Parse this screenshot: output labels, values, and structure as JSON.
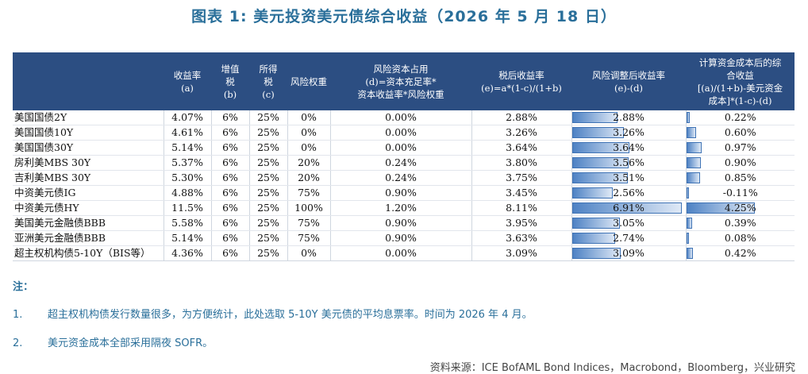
{
  "title": "图表  1:  美元投资美元债综合收益（2026 年 5 月 18 日）",
  "chart_data": {
    "type": "table",
    "columns": [
      "",
      "收益率\n(a)",
      "增值\n税\n(b)",
      "所得\n税\n(c)",
      "风险权重",
      "风险资本占用\n(d)=资本充足率*\n资本收益率*风险权重",
      "税后收益率\n(e)=a*(1-c)/(1+b)",
      "风险调整后收益率\n(e)-(d)",
      "计算资金成本后的综\n合收益\n[(a)/(1+b)-美元资金\n成本]*(1-c)-(d)"
    ],
    "rows": [
      {
        "name": "美国国债2Y",
        "yield": "4.07%",
        "vat": "6%",
        "tax": "25%",
        "weight": "0%",
        "capital": "0.00%",
        "after_tax": "2.88%",
        "risk_adj": "2.88%",
        "risk_adj_value": 2.88,
        "combined": "0.22%",
        "combined_value": 0.22
      },
      {
        "name": "美国国债10Y",
        "yield": "4.61%",
        "vat": "6%",
        "tax": "25%",
        "weight": "0%",
        "capital": "0.00%",
        "after_tax": "3.26%",
        "risk_adj": "3.26%",
        "risk_adj_value": 3.26,
        "combined": "0.60%",
        "combined_value": 0.6
      },
      {
        "name": "美国国债30Y",
        "yield": "5.14%",
        "vat": "6%",
        "tax": "25%",
        "weight": "0%",
        "capital": "0.00%",
        "after_tax": "3.64%",
        "risk_adj": "3.64%",
        "risk_adj_value": 3.64,
        "combined": "0.97%",
        "combined_value": 0.97
      },
      {
        "name": "房利美MBS 30Y",
        "yield": "5.37%",
        "vat": "6%",
        "tax": "25%",
        "weight": "20%",
        "capital": "0.24%",
        "after_tax": "3.80%",
        "risk_adj": "3.56%",
        "risk_adj_value": 3.56,
        "combined": "0.90%",
        "combined_value": 0.9
      },
      {
        "name": "吉利美MBS 30Y",
        "yield": "5.30%",
        "vat": "6%",
        "tax": "25%",
        "weight": "20%",
        "capital": "0.24%",
        "after_tax": "3.75%",
        "risk_adj": "3.51%",
        "risk_adj_value": 3.51,
        "combined": "0.85%",
        "combined_value": 0.85
      },
      {
        "name": "中资美元债IG",
        "yield": "4.88%",
        "vat": "6%",
        "tax": "25%",
        "weight": "75%",
        "capital": "0.90%",
        "after_tax": "3.45%",
        "risk_adj": "2.56%",
        "risk_adj_value": 2.56,
        "combined": "-0.11%",
        "combined_value": -0.11
      },
      {
        "name": "中资美元债HY",
        "yield": "11.5%",
        "vat": "6%",
        "tax": "25%",
        "weight": "100%",
        "capital": "1.20%",
        "after_tax": "8.11%",
        "risk_adj": "6.91%",
        "risk_adj_value": 6.91,
        "combined": "4.25%",
        "combined_value": 4.25
      },
      {
        "name": "美国美元金融债BBB",
        "yield": "5.58%",
        "vat": "6%",
        "tax": "25%",
        "weight": "75%",
        "capital": "0.90%",
        "after_tax": "3.95%",
        "risk_adj": "3.05%",
        "risk_adj_value": 3.05,
        "combined": "0.39%",
        "combined_value": 0.39
      },
      {
        "name": "亚洲美元金融债BBB",
        "yield": "5.14%",
        "vat": "6%",
        "tax": "25%",
        "weight": "75%",
        "capital": "0.90%",
        "after_tax": "3.63%",
        "risk_adj": "2.74%",
        "risk_adj_value": 2.74,
        "combined": "0.08%",
        "combined_value": 0.08
      },
      {
        "name": "超主权机构债5-10Y（BIS等）",
        "yield": "4.36%",
        "vat": "6%",
        "tax": "25%",
        "weight": "0%",
        "capital": "0.00%",
        "after_tax": "3.09%",
        "risk_adj": "3.09%",
        "risk_adj_value": 3.09,
        "combined": "0.42%",
        "combined_value": 0.42
      }
    ]
  },
  "notes": {
    "heading": "注：",
    "items": [
      {
        "num": "1.",
        "text": "超主权机构债发行数量很多，为方便统计，此处选取 5-10Y 美元债的平均息票率。时间为 2026 年 4 月。"
      },
      {
        "num": "2.",
        "text": "美元资金成本全部采用隔夜 SOFR。"
      }
    ]
  },
  "source": "资料来源：ICE BofAML Bond Indices，Macrobond，Bloomberg，兴业研究",
  "colors": {
    "header_bg": "#2c4e82",
    "bar": "#4e82c4",
    "title": "#2a6f9a"
  }
}
